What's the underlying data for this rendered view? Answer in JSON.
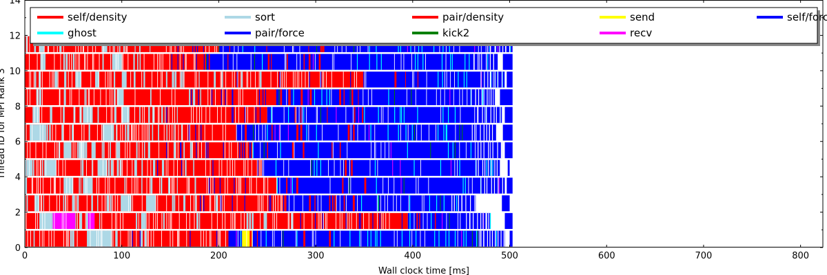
{
  "chart_data": {
    "type": "bar",
    "subtype": "task-timeline",
    "xlabel": "Wall clock time [ms]",
    "ylabel": "Thread ID for MPI Rank 3",
    "xlim": [
      0,
      823
    ],
    "ylim": [
      0,
      14
    ],
    "xticks": [
      0,
      100,
      200,
      300,
      400,
      500,
      600,
      700,
      800
    ],
    "yticks": [
      0,
      2,
      4,
      6,
      8,
      10,
      12,
      14
    ],
    "grid": false,
    "legend_placement": "top",
    "legend_columns": 5,
    "series": [
      {
        "name": "self/density",
        "color": "#ff0000"
      },
      {
        "name": "sort",
        "color": "#add8e6"
      },
      {
        "name": "pair/density",
        "color": "#ff0000"
      },
      {
        "name": "send",
        "color": "#ffff00"
      },
      {
        "name": "self/force",
        "color": "#0000ff"
      },
      {
        "name": "ghost",
        "color": "#00ffff"
      },
      {
        "name": "pair/force",
        "color": "#0000ff"
      },
      {
        "name": "kick2",
        "color": "#008000"
      },
      {
        "name": "recv",
        "color": "#ff00ff"
      }
    ],
    "threads": [
      {
        "thread": 0,
        "red_end": 210,
        "blue_end": 495,
        "blue_gap": [
          500,
          503
        ],
        "send": [
          [
            224,
            235
          ]
        ],
        "sort": [
          [
            64,
            90
          ]
        ],
        "recv": []
      },
      {
        "thread": 1,
        "red_end": 395,
        "blue_end": 480,
        "blue_gap": [
          495,
          503
        ],
        "send": [],
        "sort": [
          [
            15,
            28
          ],
          [
            120,
            125
          ]
        ],
        "recv": [
          [
            28,
            52
          ],
          [
            65,
            72
          ]
        ]
      },
      {
        "thread": 2,
        "red_end": 268,
        "blue_end": 465,
        "blue_gap": [
          492,
          500
        ],
        "send": [],
        "sort": [
          [
            10,
            15
          ],
          [
            100,
            110
          ],
          [
            125,
            135
          ]
        ],
        "recv": []
      },
      {
        "thread": 3,
        "red_end": 260,
        "blue_end": 495,
        "blue_gap": [
          497,
          503
        ],
        "send": [],
        "sort": [
          [
            40,
            50
          ],
          [
            60,
            70
          ]
        ],
        "recv": []
      },
      {
        "thread": 4,
        "red_end": 245,
        "blue_end": 490,
        "blue_gap": [
          498,
          500
        ],
        "send": [],
        "sort": [
          [
            2,
            8
          ],
          [
            20,
            32
          ],
          [
            75,
            85
          ]
        ],
        "recv": []
      },
      {
        "thread": 5,
        "red_end": 235,
        "blue_end": 492,
        "blue_gap": [
          495,
          503
        ],
        "send": [],
        "sort": [
          [
            40,
            48
          ],
          [
            55,
            62
          ]
        ],
        "recv": []
      },
      {
        "thread": 6,
        "red_end": 218,
        "blue_end": 486,
        "blue_gap": [
          493,
          503
        ],
        "send": [],
        "sort": [
          [
            5,
            22
          ],
          [
            80,
            92
          ]
        ],
        "recv": []
      },
      {
        "thread": 7,
        "red_end": 250,
        "blue_end": 492,
        "blue_gap": [
          495,
          503
        ],
        "send": [],
        "sort": [
          [
            8,
            15
          ],
          [
            60,
            70
          ],
          [
            100,
            108
          ]
        ],
        "recv": []
      },
      {
        "thread": 8,
        "red_end": 258,
        "blue_end": 485,
        "blue_gap": [
          490,
          503
        ],
        "send": [],
        "sort": [
          [
            95,
            102
          ]
        ],
        "recv": []
      },
      {
        "thread": 9,
        "red_end": 350,
        "blue_end": 495,
        "blue_gap": [
          497,
          503
        ],
        "send": [],
        "sort": [
          [
            52,
            58
          ],
          [
            100,
            105
          ]
        ],
        "recv": []
      },
      {
        "thread": 10,
        "red_end": 187,
        "blue_end": 488,
        "blue_gap": [
          493,
          503
        ],
        "send": [],
        "sort": [
          [
            16,
            20
          ],
          [
            90,
            100
          ]
        ],
        "recv": []
      },
      {
        "thread": 11,
        "red_end": 200,
        "blue_end": 502,
        "blue_gap": [
          502,
          503
        ],
        "send": [],
        "sort": [
          [
            15,
            20
          ],
          [
            80,
            85
          ]
        ],
        "recv": []
      }
    ]
  }
}
